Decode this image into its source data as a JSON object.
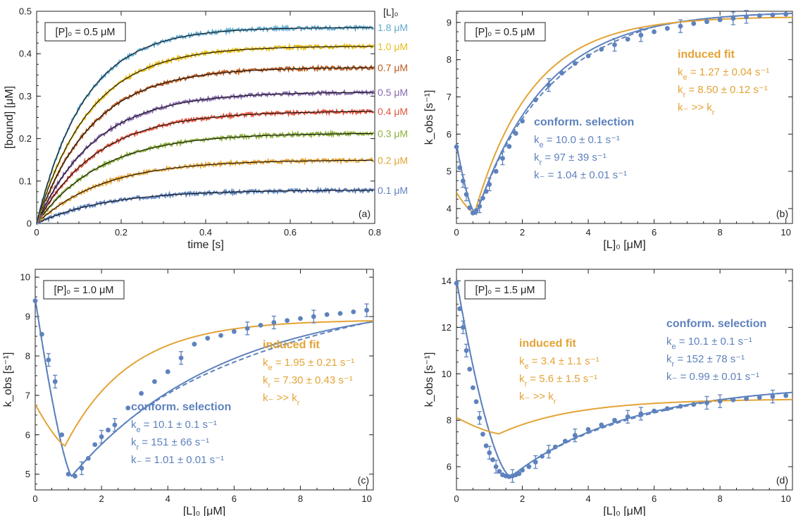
{
  "figure": {
    "colors": {
      "orange": "#E3A336",
      "blue": "#5E82BD",
      "black": "#111111"
    },
    "concentration_colors": [
      "#5E82BD",
      "#E3A336",
      "#8DB13C",
      "#E0553E",
      "#8768AE",
      "#B95B1F",
      "#E6BC16",
      "#5FA9CF"
    ]
  },
  "chart_data": [
    {
      "id": "a",
      "type": "line",
      "panel_label": "(a)",
      "xlabel": "time [s]",
      "ylabel": "[bound] [μM]",
      "xlim": [
        0,
        0.8
      ],
      "ylim": [
        0,
        0.5
      ],
      "xticks": [
        "0",
        "0.2",
        "0.4",
        "0.6",
        "0.8"
      ],
      "yticks": [
        "0",
        "0.1",
        "0.2",
        "0.3",
        "0.4",
        "0.5"
      ],
      "box_text": "[P]₀ = 0.5 μM",
      "legend_title": "[L]₀",
      "series": [
        {
          "name": "0.1 μM",
          "L0": 0.1,
          "plateau": 0.079,
          "rate": 6.0
        },
        {
          "name": "0.2 μM",
          "L0": 0.2,
          "plateau": 0.15,
          "rate": 6.3
        },
        {
          "name": "0.3 μM",
          "L0": 0.3,
          "plateau": 0.213,
          "rate": 6.6
        },
        {
          "name": "0.4 μM",
          "L0": 0.4,
          "plateau": 0.265,
          "rate": 6.9
        },
        {
          "name": "0.5 μM",
          "L0": 0.5,
          "plateau": 0.31,
          "rate": 7.2
        },
        {
          "name": "0.7 μM",
          "L0": 0.7,
          "plateau": 0.368,
          "rate": 7.6
        },
        {
          "name": "1.0 μM",
          "L0": 1.0,
          "plateau": 0.418,
          "rate": 8.0
        },
        {
          "name": "1.8 μM",
          "L0": 1.8,
          "plateau": 0.462,
          "rate": 8.8
        }
      ]
    },
    {
      "id": "b",
      "type": "scatter",
      "panel_label": "(b)",
      "xlabel": "[L]₀ [μM]",
      "ylabel": "k_obs [s⁻¹]",
      "xlim": [
        0,
        10.2
      ],
      "ylim": [
        3.6,
        9.3
      ],
      "xticks": [
        "0",
        "2",
        "4",
        "6",
        "8",
        "10"
      ],
      "yticks": [
        "4",
        "5",
        "6",
        "7",
        "8",
        "9"
      ],
      "box_text": "[P]₀ = 0.5 μM",
      "points_x": [
        0,
        0.1,
        0.2,
        0.3,
        0.4,
        0.5,
        0.6,
        0.7,
        0.8,
        0.9,
        1,
        1.2,
        1.4,
        1.6,
        1.8,
        2,
        2.4,
        2.8,
        3.2,
        3.6,
        4,
        4.4,
        4.8,
        5.2,
        5.6,
        6,
        6.4,
        6.8,
        7.2,
        7.6,
        8,
        8.4,
        8.8,
        9.2,
        9.6,
        10
      ],
      "points_y": [
        5.66,
        5.1,
        4.74,
        4.38,
        4.02,
        3.88,
        3.95,
        4.06,
        4.28,
        4.46,
        4.65,
        5.0,
        5.35,
        5.67,
        6.02,
        6.35,
        6.92,
        7.32,
        7.64,
        7.9,
        8.1,
        8.28,
        8.4,
        8.55,
        8.66,
        8.75,
        8.84,
        8.9,
        8.97,
        9.02,
        9.07,
        9.11,
        9.15,
        9.18,
        9.2,
        9.22
      ],
      "curves": [
        {
          "name": "conformational selection",
          "color": "blue",
          "style": "solid"
        },
        {
          "name": "conformational selection (alt)",
          "color": "blue",
          "style": "dashed"
        },
        {
          "name": "induced fit",
          "color": "orange",
          "style": "solid"
        }
      ],
      "annotations": {
        "if_title": "induced fit",
        "if_lines": [
          "k_e = 1.27 ± 0.04 s⁻¹",
          "k_r = 8.50 ± 0.12 s⁻¹",
          "k₋ >> k_r"
        ],
        "cs_title": "conform. selection",
        "cs_lines": [
          "k_e = 10.0 ± 0.1 s⁻¹",
          "k_r = 97 ± 39 s⁻¹",
          "k₋ = 1.04 ± 0.01 s⁻¹"
        ]
      }
    },
    {
      "id": "c",
      "type": "scatter",
      "panel_label": "(c)",
      "xlabel": "[L]₀ [μM]",
      "ylabel": "k_obs [s⁻¹]",
      "xlim": [
        0,
        10.2
      ],
      "ylim": [
        4.6,
        10.2
      ],
      "xticks": [
        "0",
        "2",
        "4",
        "6",
        "8",
        "10"
      ],
      "yticks": [
        "5",
        "6",
        "7",
        "8",
        "9",
        "10"
      ],
      "box_text": "[P]₀ = 1.0 μM",
      "points_x": [
        0,
        0.2,
        0.4,
        0.6,
        0.8,
        1.0,
        1.2,
        1.4,
        1.6,
        1.8,
        2.0,
        2.2,
        2.4,
        2.8,
        3.2,
        3.6,
        4.0,
        4.4,
        4.8,
        5.2,
        5.6,
        6.0,
        6.4,
        6.8,
        7.2,
        7.6,
        8.0,
        8.4,
        8.8,
        9.2,
        9.6,
        10
      ],
      "points_y": [
        9.4,
        8.55,
        7.9,
        7.35,
        6.0,
        5.0,
        4.95,
        5.15,
        5.4,
        5.75,
        5.95,
        6.12,
        6.25,
        6.68,
        7.05,
        7.35,
        7.6,
        7.95,
        8.3,
        8.45,
        8.52,
        8.62,
        8.7,
        8.78,
        8.85,
        8.9,
        8.95,
        9.0,
        9.05,
        9.08,
        9.12,
        9.16
      ],
      "curves": [
        {
          "name": "conformational selection",
          "color": "blue",
          "style": "solid"
        },
        {
          "name": "conformational selection (alt)",
          "color": "blue",
          "style": "dashed"
        },
        {
          "name": "induced fit",
          "color": "orange",
          "style": "solid"
        }
      ],
      "annotations": {
        "if_title": "induced fit",
        "if_lines": [
          "k_e = 1.95 ± 0.21 s⁻¹",
          "k_r = 7.30 ± 0.43 s⁻¹",
          "k₋ >> k_r"
        ],
        "cs_title": "conform. selection",
        "cs_lines": [
          "k_e = 10.1 ± 0.1 s⁻¹",
          "k_r = 151 ± 66 s⁻¹",
          "k₋ = 1.01 ± 0.01 s⁻¹"
        ]
      }
    },
    {
      "id": "d",
      "type": "scatter",
      "panel_label": "(d)",
      "xlabel": "[L]₀ [μM]",
      "ylabel": "k_obs [s⁻¹]",
      "xlim": [
        0,
        10.2
      ],
      "ylim": [
        5.0,
        14.5
      ],
      "xticks": [
        "0",
        "2",
        "4",
        "6",
        "8",
        "10"
      ],
      "yticks": [
        "6",
        "8",
        "10",
        "12",
        "14"
      ],
      "box_text": "[P]₀ = 1.5 μM",
      "points_x": [
        0,
        0.1,
        0.2,
        0.3,
        0.4,
        0.5,
        0.6,
        0.7,
        0.8,
        0.9,
        1.0,
        1.1,
        1.2,
        1.3,
        1.4,
        1.5,
        1.6,
        1.7,
        1.8,
        1.9,
        2.0,
        2.2,
        2.4,
        2.6,
        2.8,
        3.0,
        3.3,
        3.6,
        4.0,
        4.4,
        4.8,
        5.2,
        5.6,
        6.0,
        6.4,
        6.8,
        7.2,
        7.6,
        8.0,
        8.4,
        8.8,
        9.2,
        9.6,
        10
      ],
      "points_y": [
        13.9,
        12.8,
        12.0,
        11.0,
        10.2,
        9.4,
        8.8,
        8.1,
        7.4,
        6.9,
        6.6,
        6.3,
        6.0,
        5.8,
        5.65,
        5.6,
        5.57,
        5.6,
        5.65,
        5.7,
        5.85,
        6.0,
        6.2,
        6.45,
        6.65,
        6.85,
        7.1,
        7.35,
        7.6,
        7.8,
        8.0,
        8.15,
        8.28,
        8.4,
        8.5,
        8.6,
        8.68,
        8.75,
        8.82,
        8.88,
        8.93,
        8.98,
        9.02,
        9.06
      ],
      "curves": [
        {
          "name": "conformational selection",
          "color": "blue",
          "style": "solid"
        },
        {
          "name": "conformational selection (alt)",
          "color": "blue",
          "style": "dashed"
        },
        {
          "name": "induced fit",
          "color": "orange",
          "style": "solid"
        }
      ],
      "annotations": {
        "if_title": "induced fit",
        "if_lines": [
          "k_e = 3.4 ± 1.1 s⁻¹",
          "k_r = 5.6 ± 1.5 s⁻¹",
          "k₋ >> k_r"
        ],
        "cs_title": "conform. selection",
        "cs_lines": [
          "k_e = 10.1 ± 0.1 s⁻¹",
          "k_r = 152 ± 78 s⁻¹",
          "k₋ = 0.99 ± 0.01 s⁻¹"
        ]
      }
    }
  ]
}
